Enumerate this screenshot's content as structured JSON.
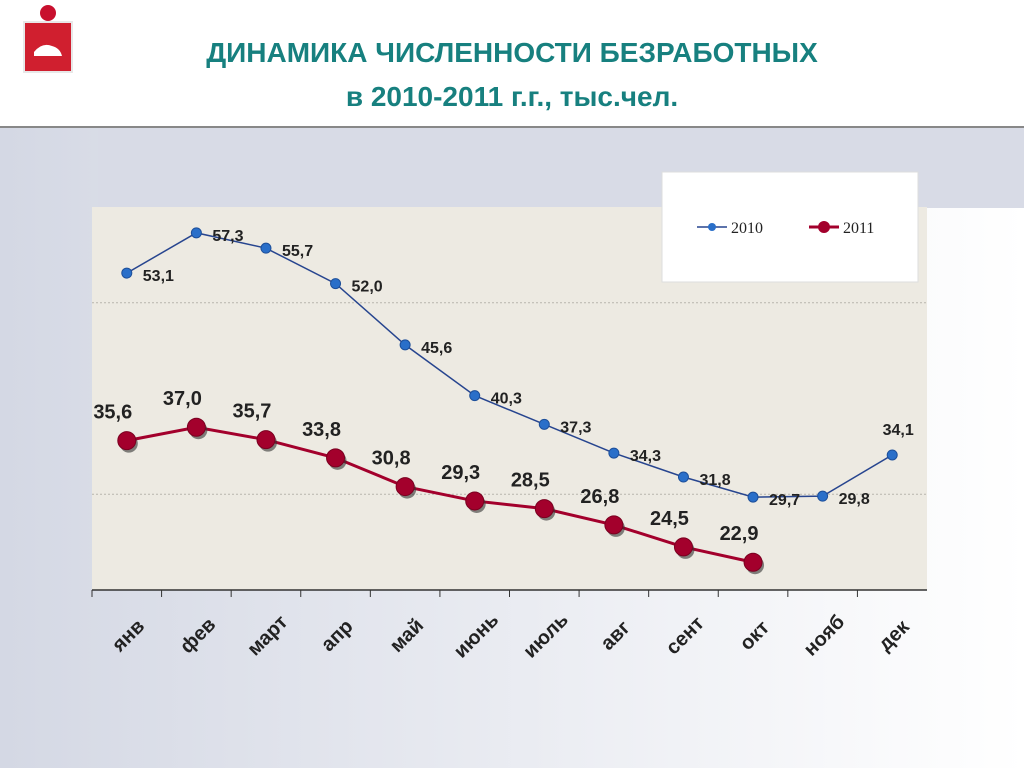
{
  "chart_data": {
    "type": "line",
    "title_lines": [
      "ДИНАМИКА ЧИСЛЕННОСТИ БЕЗРАБОТНЫХ",
      "в 2010-2011 г.г., тыс.чел."
    ],
    "categories": [
      "янв",
      "фев",
      "март",
      "апр",
      "май",
      "июнь",
      "июль",
      "авг",
      "сент",
      "окт",
      "нояб",
      "дек"
    ],
    "series": [
      {
        "name": "2010",
        "color": "#2a6fc9",
        "values": [
          53.1,
          57.3,
          55.7,
          52.0,
          45.6,
          40.3,
          37.3,
          34.3,
          31.8,
          29.7,
          29.8,
          34.1
        ],
        "value_labels": [
          "53,1",
          "57,3",
          "55,7",
          "52,0",
          "45,6",
          "40,3",
          "37,3",
          "34,3",
          "31,8",
          "29,7",
          "29,8",
          "34,1"
        ]
      },
      {
        "name": "2011",
        "color": "#a3002c",
        "values": [
          35.6,
          37.0,
          35.7,
          33.8,
          30.8,
          29.3,
          28.5,
          26.8,
          24.5,
          22.9,
          null,
          null
        ],
        "value_labels": [
          "35,6",
          "37,0",
          "35,7",
          "33,8",
          "30,8",
          "29,3",
          "28,5",
          "26,8",
          "24,5",
          "22,9",
          null,
          null
        ]
      }
    ],
    "ylim": [
      20,
      60
    ],
    "grid_lines": [
      30,
      50
    ],
    "legend": "top-right"
  }
}
